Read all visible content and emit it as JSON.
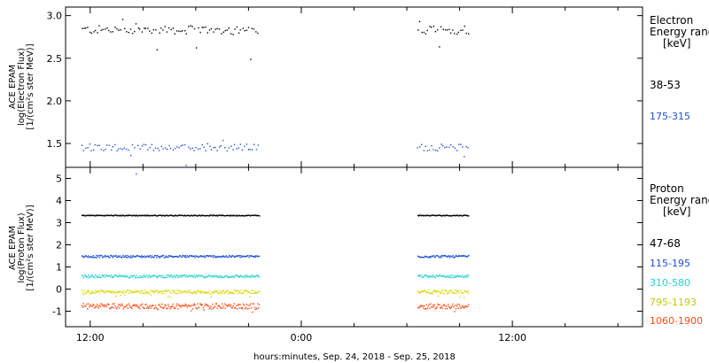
{
  "chart_data": {
    "type": "scatter",
    "xlabel": "hours:minutes, Sep. 24, 2018 - Sep. 25, 2018",
    "x_unit": "hours since 2018-09-24 00:00",
    "x_ticks": [
      {
        "value": 12,
        "label": "12:00"
      },
      {
        "value": 24,
        "label": "0:00"
      },
      {
        "value": 36,
        "label": "12:00"
      }
    ],
    "xlim": [
      10.6,
      43.4
    ],
    "data_gaps": [
      [
        21.6,
        30.6
      ]
    ],
    "panels": [
      {
        "ylabel_lines": [
          "ACE EPAM",
          "log(Electron Flux)",
          "[1/(cm²s ster MeV)]"
        ],
        "ylim": [
          1.22,
          3.1
        ],
        "y_ticks": [
          {
            "value": 1.5,
            "label": "1.5"
          },
          {
            "value": 2.0,
            "label": "2.0"
          },
          {
            "value": 2.5,
            "label": "2.5"
          },
          {
            "value": 3.0,
            "label": "3.0"
          }
        ],
        "legend_title": [
          "Electron",
          "Energy range",
          "[keV]"
        ],
        "series": [
          {
            "name": "38-53",
            "color": "#000000",
            "level": 2.84,
            "spread": 0.05
          },
          {
            "name": "175-315",
            "color": "#1f4fd8",
            "level": 1.46,
            "spread": 0.04
          }
        ]
      },
      {
        "ylabel_lines": [
          "ACE EPAM",
          "log(Proton Flux)",
          "[1/(cm²s ster MeV)]"
        ],
        "ylim": [
          -1.7,
          5.5
        ],
        "y_ticks": [
          {
            "value": -1,
            "label": "-1"
          },
          {
            "value": 0,
            "label": "0"
          },
          {
            "value": 1,
            "label": "1"
          },
          {
            "value": 2,
            "label": "2"
          },
          {
            "value": 3,
            "label": "3"
          },
          {
            "value": 4,
            "label": "4"
          },
          {
            "value": 5,
            "label": "5"
          }
        ],
        "legend_title": [
          "Proton",
          "Energy range",
          "[keV]"
        ],
        "series": [
          {
            "name": "47-68",
            "color": "#000000",
            "level": 3.35,
            "spread": 0.02
          },
          {
            "name": "115-195",
            "color": "#1f4fd8",
            "level": 1.5,
            "spread": 0.05
          },
          {
            "name": "310-580",
            "color": "#22d3d3",
            "level": 0.6,
            "spread": 0.06
          },
          {
            "name": "795-1193",
            "color": "#d8d800",
            "level": -0.1,
            "spread": 0.08
          },
          {
            "name": "1060-1900",
            "color": "#ff4a10",
            "level": -0.75,
            "spread": 0.12
          }
        ]
      }
    ]
  }
}
